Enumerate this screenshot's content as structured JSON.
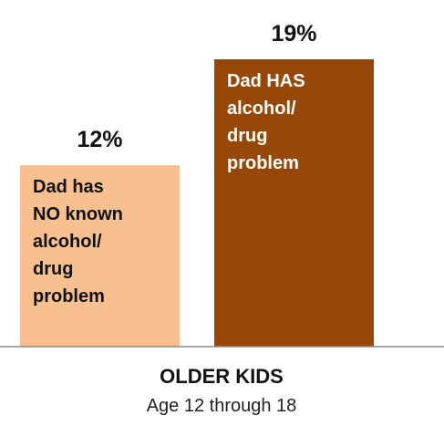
{
  "chart_data": {
    "type": "bar",
    "categories": [
      "Dad has NO known alcohol/ drug problem",
      "Dad HAS alcohol/ drug problem"
    ],
    "values": [
      12,
      19
    ],
    "unit": "%",
    "value_labels": [
      "12%",
      "19%"
    ],
    "bar_text_lines": [
      [
        "Dad has",
        "NO known",
        "alcohol/",
        "drug",
        "problem"
      ],
      [
        "Dad HAS",
        "alcohol/",
        "drug",
        "problem"
      ]
    ],
    "colors": [
      "#F8BF8F",
      "#984806"
    ],
    "text_colors": [
      "#111111",
      "#ffffff"
    ],
    "group_label": "OLDER KIDS",
    "group_sublabel": "Age 12 through 18",
    "ylim": [
      0,
      19
    ],
    "grid": false,
    "legend": "none"
  }
}
